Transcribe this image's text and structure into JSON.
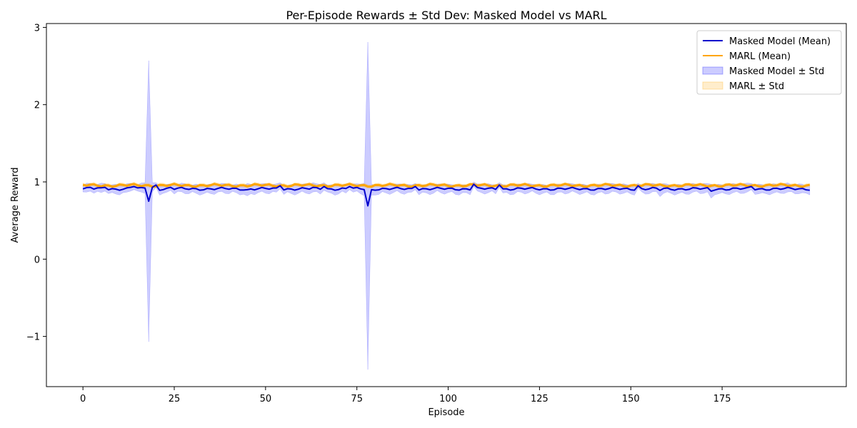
{
  "chart_data": {
    "type": "line",
    "title": "Per-Episode Rewards ± Std Dev: Masked Model vs MARL",
    "xlabel": "Episode",
    "ylabel": "Average Reward",
    "xlim": [
      -10,
      209
    ],
    "ylim": [
      -1.65,
      3.05
    ],
    "xticks": [
      0,
      25,
      50,
      75,
      100,
      125,
      150,
      175
    ],
    "yticks": [
      -1,
      0,
      1,
      2,
      3
    ],
    "xtick_labels": [
      "0",
      "25",
      "50",
      "75",
      "100",
      "125",
      "150",
      "175"
    ],
    "ytick_labels": [
      "−1",
      "0",
      "1",
      "2",
      "3"
    ],
    "grid": false,
    "legend_position": "top-right",
    "legend": [
      {
        "label": "Masked Model (Mean)",
        "kind": "line",
        "color": "#0000cc"
      },
      {
        "label": "MARL (Mean)",
        "kind": "line",
        "color": "#ffa500"
      },
      {
        "label": "Masked Model ± Std",
        "kind": "band",
        "color": "#0000ff"
      },
      {
        "label": "MARL ± Std",
        "kind": "band",
        "color": "#ffa500"
      }
    ],
    "n_episodes": 200,
    "series": [
      {
        "name": "Masked Model (Mean)",
        "color": "#0000cc",
        "base_mean": 0.91,
        "base_std": 0.04,
        "overrides": [
          {
            "x": 2,
            "mean": 0.93,
            "std": 0.05
          },
          {
            "x": 6,
            "mean": 0.93,
            "std": 0.05
          },
          {
            "x": 13,
            "mean": 0.93,
            "std": 0.05
          },
          {
            "x": 14,
            "mean": 0.94,
            "std": 0.04
          },
          {
            "x": 17,
            "mean": 0.92,
            "std": 0.07
          },
          {
            "x": 18,
            "mean": 0.75,
            "std": 1.82
          },
          {
            "x": 19,
            "mean": 0.93,
            "std": 0.06
          },
          {
            "x": 20,
            "mean": 0.96,
            "std": 0.03
          },
          {
            "x": 24,
            "mean": 0.93,
            "std": 0.04
          },
          {
            "x": 45,
            "mean": 0.9,
            "std": 0.08
          },
          {
            "x": 54,
            "mean": 0.95,
            "std": 0.04
          },
          {
            "x": 63,
            "mean": 0.93,
            "std": 0.06
          },
          {
            "x": 66,
            "mean": 0.94,
            "std": 0.05
          },
          {
            "x": 73,
            "mean": 0.94,
            "std": 0.04
          },
          {
            "x": 77,
            "mean": 0.9,
            "std": 0.08
          },
          {
            "x": 78,
            "mean": 0.69,
            "std": 2.12
          },
          {
            "x": 79,
            "mean": 0.9,
            "std": 0.07
          },
          {
            "x": 91,
            "mean": 0.94,
            "std": 0.04
          },
          {
            "x": 107,
            "mean": 0.97,
            "std": 0.03
          },
          {
            "x": 114,
            "mean": 0.96,
            "std": 0.03
          },
          {
            "x": 152,
            "mean": 0.95,
            "std": 0.03
          },
          {
            "x": 158,
            "mean": 0.89,
            "std": 0.08
          },
          {
            "x": 172,
            "mean": 0.88,
            "std": 0.09
          },
          {
            "x": 183,
            "mean": 0.94,
            "std": 0.04
          }
        ]
      },
      {
        "name": "MARL (Mean)",
        "color": "#ffa500",
        "base_mean": 0.955,
        "base_std": 0.015,
        "overrides": []
      }
    ]
  }
}
